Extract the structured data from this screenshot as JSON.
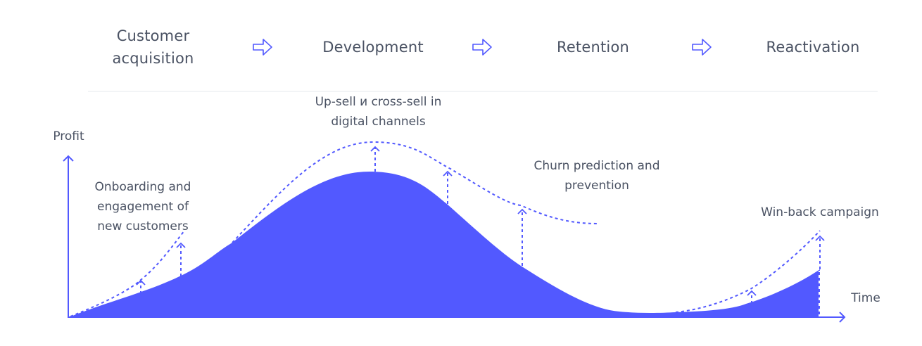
{
  "stages": [
    {
      "label": "Customer acquisition"
    },
    {
      "label": "Development"
    },
    {
      "label": "Retention"
    },
    {
      "label": "Reactivation"
    }
  ],
  "axes": {
    "y_label": "Profit",
    "x_label": "Time"
  },
  "annotations": {
    "onboarding": "Onboarding and engagement of new customers",
    "upsell": "Up-sell и cross-sell in digital channels",
    "churn": "Churn prediction and prevention",
    "winback": "Win-back campaign"
  },
  "colors": {
    "accent": "#5259FF",
    "text": "#4a5263",
    "divider": "#e6e8ee"
  },
  "icons": {
    "stage_separator": "arrow-right-outline-icon"
  }
}
